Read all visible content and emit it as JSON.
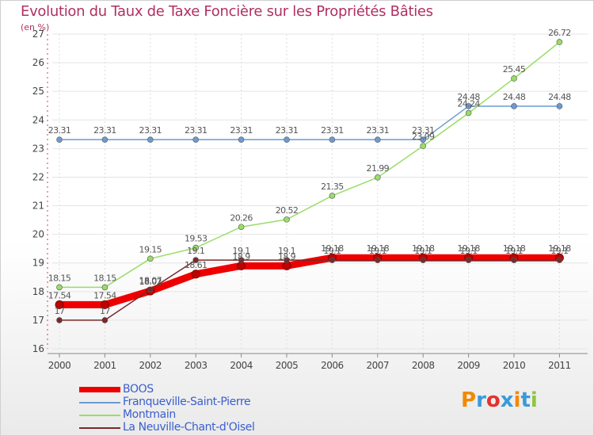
{
  "chart_data": {
    "type": "line",
    "title": "Evolution du Taux de Taxe Foncière sur les Propriétés Bâties",
    "ylabel": "(en %)",
    "xlabel": "",
    "ylim": [
      16,
      27
    ],
    "yticks": [
      "16",
      "17",
      "18",
      "19",
      "20",
      "21",
      "22",
      "23",
      "24",
      "25",
      "26",
      "27"
    ],
    "categories": [
      "2000",
      "2001",
      "2002",
      "2003",
      "2004",
      "2005",
      "2006",
      "2007",
      "2008",
      "2009",
      "2010",
      "2011"
    ],
    "series": [
      {
        "name": "BOOS",
        "color": "#ee0000",
        "values": [
          17.54,
          17.54,
          18.02,
          18.61,
          18.9,
          18.9,
          19.18,
          19.18,
          19.18,
          19.18,
          19.18,
          19.18
        ],
        "labels": [
          "17.54",
          "17.54",
          "18.02",
          "18.61",
          "18.9",
          "18.9",
          "19.18",
          "19.18",
          "19.18",
          "19.18",
          "19.18",
          "19.18"
        ]
      },
      {
        "name": "Franqueville-Saint-Pierre",
        "color": "#6b9bd1",
        "values": [
          23.31,
          23.31,
          23.31,
          23.31,
          23.31,
          23.31,
          23.31,
          23.31,
          23.31,
          24.48,
          24.48,
          24.48
        ],
        "labels": [
          "23.31",
          "23.31",
          "23.31",
          "23.31",
          "23.31",
          "23.31",
          "23.31",
          "23.31",
          "23.31",
          "24.48",
          "24.48",
          "24.48"
        ]
      },
      {
        "name": "Montmain",
        "color": "#99dd66",
        "values": [
          18.15,
          18.15,
          19.15,
          19.53,
          20.26,
          20.52,
          21.35,
          21.99,
          23.09,
          24.24,
          25.45,
          26.72
        ],
        "labels": [
          "18.15",
          "18.15",
          "19.15",
          "19.53",
          "20.26",
          "20.52",
          "21.35",
          "21.99",
          "23.09",
          "24.24",
          "25.45",
          "26.72"
        ]
      },
      {
        "name": "La Neuville-Chant-d'Oisel",
        "color": "#7a2a2a",
        "values": [
          17,
          17,
          18.07,
          19.1,
          19.1,
          19.1,
          19.1,
          19.1,
          19.1,
          19.1,
          19.1,
          19.1
        ],
        "labels": [
          "17",
          "17",
          "18.07",
          "19.1",
          "19.1",
          "19.1",
          "19.1",
          "19.1",
          "19.1",
          "19.1",
          "19.1",
          "19.1"
        ]
      }
    ]
  },
  "logo": {
    "text": "Proxiti",
    "colors": [
      "#f08a00",
      "#3a9ad9",
      "#e2342c",
      "#3a9ad9",
      "#f08a00",
      "#3a9ad9",
      "#8cc63f"
    ]
  }
}
